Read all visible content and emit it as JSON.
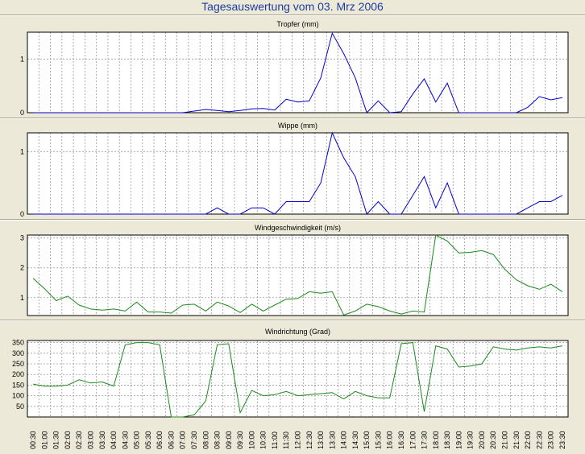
{
  "title": "Tagesauswertung vom 03. Mrz 2006",
  "chart_data": [
    {
      "type": "line",
      "title": "Tropfer (mm)",
      "color": "#0000cc",
      "ylim": [
        0,
        1.5
      ],
      "yticks": [
        0,
        1
      ],
      "x": [
        "00:30",
        "01:00",
        "01:30",
        "02:00",
        "02:30",
        "03:00",
        "03:30",
        "04:00",
        "04:30",
        "05:00",
        "05:30",
        "06:00",
        "06:30",
        "07:00",
        "07:30",
        "08:00",
        "08:30",
        "09:00",
        "09:30",
        "10:00",
        "10:30",
        "11:00",
        "11:30",
        "12:00",
        "12:30",
        "13:00",
        "13:30",
        "14:00",
        "14:30",
        "15:00",
        "15:30",
        "16:00",
        "16:30",
        "17:00",
        "17:30",
        "18:00",
        "18:30",
        "19:00",
        "19:30",
        "20:00",
        "20:30",
        "21:00",
        "21:30",
        "22:00",
        "22:30",
        "23:00",
        "23:30"
      ],
      "values": [
        0,
        0,
        0,
        0,
        0,
        0,
        0,
        0,
        0,
        0,
        0,
        0,
        0,
        0,
        0.03,
        0.06,
        0.04,
        0.02,
        0.04,
        0.07,
        0.08,
        0.05,
        0.25,
        0.2,
        0.22,
        0.65,
        1.48,
        1.1,
        0.65,
        0,
        0.22,
        0,
        0.02,
        0.35,
        0.63,
        0.2,
        0.55,
        0,
        0,
        0,
        0,
        0,
        0,
        0.1,
        0.3,
        0.24,
        0.28
      ]
    },
    {
      "type": "line",
      "title": "Wippe (mm)",
      "color": "#0000cc",
      "ylim": [
        0,
        1.3
      ],
      "yticks": [
        0,
        1
      ],
      "x": [
        "00:30",
        "01:00",
        "01:30",
        "02:00",
        "02:30",
        "03:00",
        "03:30",
        "04:00",
        "04:30",
        "05:00",
        "05:30",
        "06:00",
        "06:30",
        "07:00",
        "07:30",
        "08:00",
        "08:30",
        "09:00",
        "09:30",
        "10:00",
        "10:30",
        "11:00",
        "11:30",
        "12:00",
        "12:30",
        "13:00",
        "13:30",
        "14:00",
        "14:30",
        "15:00",
        "15:30",
        "16:00",
        "16:30",
        "17:00",
        "17:30",
        "18:00",
        "18:30",
        "19:00",
        "19:30",
        "20:00",
        "20:30",
        "21:00",
        "21:30",
        "22:00",
        "22:30",
        "23:00",
        "23:30"
      ],
      "values": [
        0,
        0,
        0,
        0,
        0,
        0,
        0,
        0,
        0,
        0,
        0,
        0,
        0,
        0,
        0,
        0,
        0.1,
        0,
        0,
        0.1,
        0.1,
        0,
        0.2,
        0.2,
        0.2,
        0.5,
        1.3,
        0.9,
        0.6,
        0,
        0.2,
        0,
        0,
        0.3,
        0.6,
        0.1,
        0.5,
        0,
        0,
        0,
        0,
        0,
        0,
        0.1,
        0.2,
        0.2,
        0.3
      ]
    },
    {
      "type": "line",
      "title": "Windgeschwindigkeit (m/s)",
      "color": "#1a8a1a",
      "ylim": [
        0.4,
        3.1
      ],
      "yticks": [
        1,
        2,
        3
      ],
      "x": [
        "00:30",
        "01:00",
        "01:30",
        "02:00",
        "02:30",
        "03:00",
        "03:30",
        "04:00",
        "04:30",
        "05:00",
        "05:30",
        "06:00",
        "06:30",
        "07:00",
        "07:30",
        "08:00",
        "08:30",
        "09:00",
        "09:30",
        "10:00",
        "10:30",
        "11:00",
        "11:30",
        "12:00",
        "12:30",
        "13:00",
        "13:30",
        "14:00",
        "14:30",
        "15:00",
        "15:30",
        "16:00",
        "16:30",
        "17:00",
        "17:30",
        "18:00",
        "18:30",
        "19:00",
        "19:30",
        "20:00",
        "20:30",
        "21:00",
        "21:30",
        "22:00",
        "22:30",
        "23:00",
        "23:30"
      ],
      "values": [
        1.65,
        1.3,
        0.9,
        1.05,
        0.75,
        0.62,
        0.58,
        0.62,
        0.55,
        0.85,
        0.52,
        0.52,
        0.48,
        0.75,
        0.78,
        0.55,
        0.85,
        0.72,
        0.5,
        0.78,
        0.55,
        0.75,
        0.95,
        0.97,
        1.2,
        1.15,
        1.2,
        0.42,
        0.55,
        0.78,
        0.7,
        0.55,
        0.45,
        0.55,
        0.52,
        3.1,
        2.9,
        2.5,
        2.52,
        2.58,
        2.45,
        1.95,
        1.6,
        1.4,
        1.28,
        1.45,
        1.2
      ]
    },
    {
      "type": "line",
      "title": "Windrichtung (Grad)",
      "color": "#1a8a1a",
      "ylim": [
        0,
        360
      ],
      "yticks": [
        50,
        100,
        150,
        200,
        250,
        300,
        350
      ],
      "x": [
        "00:30",
        "01:00",
        "01:30",
        "02:00",
        "02:30",
        "03:00",
        "03:30",
        "04:00",
        "04:30",
        "05:00",
        "05:30",
        "06:00",
        "06:30",
        "07:00",
        "07:30",
        "08:00",
        "08:30",
        "09:00",
        "09:30",
        "10:00",
        "10:30",
        "11:00",
        "11:30",
        "12:00",
        "12:30",
        "13:00",
        "13:30",
        "14:00",
        "14:30",
        "15:00",
        "15:30",
        "16:00",
        "16:30",
        "17:00",
        "17:30",
        "18:00",
        "18:30",
        "19:00",
        "19:30",
        "20:00",
        "20:30",
        "21:00",
        "21:30",
        "22:00",
        "22:30",
        "23:00",
        "23:30"
      ],
      "values": [
        155,
        145,
        145,
        150,
        175,
        160,
        165,
        145,
        340,
        350,
        350,
        340,
        0,
        0,
        10,
        75,
        340,
        345,
        20,
        125,
        100,
        105,
        120,
        100,
        105,
        110,
        115,
        85,
        120,
        100,
        90,
        90,
        345,
        350,
        25,
        335,
        320,
        235,
        240,
        250,
        330,
        320,
        315,
        325,
        330,
        325,
        335
      ]
    }
  ]
}
